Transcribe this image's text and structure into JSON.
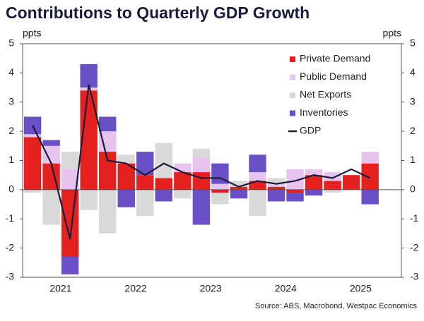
{
  "chart_data": {
    "type": "stacked_bar_line",
    "title": "Contributions to Quarterly GDP Growth",
    "y_label": "ppts",
    "y2_label": "ppts",
    "source": "Source: ABS, Macrobond, Westpac Economics",
    "categories": [
      "2021",
      null,
      null,
      null,
      "2022",
      null,
      null,
      null,
      "2023",
      null,
      null,
      null,
      "2024",
      null,
      null,
      null,
      "2025",
      null,
      null
    ],
    "series": [
      {
        "name": "Private Demand",
        "color": "#e4211f",
        "values": [
          1.8,
          0.9,
          -2.3,
          3.4,
          1.3,
          0.9,
          0.5,
          0.4,
          0.6,
          0.6,
          -0.1,
          0.1,
          0.3,
          0.1,
          -0.1,
          0.5,
          0.3,
          0.5,
          0.9
        ]
      },
      {
        "name": "Public Demand",
        "color": "#e6c3f0",
        "values": [
          0.1,
          0.6,
          0.7,
          0.1,
          0.7,
          0.0,
          0.0,
          0.0,
          0.3,
          0.5,
          0.2,
          0.0,
          0.3,
          0.1,
          0.7,
          0.2,
          0.3,
          0.0,
          0.4
        ]
      },
      {
        "name": "Net Exports",
        "color": "#d9d9d9",
        "values": [
          -0.1,
          -1.2,
          0.6,
          -0.7,
          -1.5,
          0.3,
          -0.9,
          1.2,
          -0.3,
          0.3,
          -0.4,
          0.2,
          -0.9,
          0.2,
          0.0,
          0.0,
          -0.1,
          0.0,
          0.0
        ]
      },
      {
        "name": "Inventories",
        "color": "#6a4fc6",
        "values": [
          0.6,
          0.2,
          -0.6,
          0.8,
          0.5,
          -0.6,
          0.8,
          -0.4,
          0.0,
          -1.2,
          0.7,
          -0.3,
          0.6,
          -0.4,
          -0.3,
          -0.2,
          0.0,
          0.0,
          -0.5
        ]
      },
      {
        "name": "GDP",
        "color": "#1c1c3a",
        "kind": "line",
        "values": [
          2.2,
          0.9,
          -1.7,
          3.6,
          1.0,
          0.9,
          0.5,
          0.9,
          0.6,
          0.4,
          0.4,
          0.1,
          0.3,
          0.2,
          0.3,
          0.5,
          0.4,
          0.7,
          0.4
        ]
      }
    ],
    "ylim": [
      -3,
      5
    ],
    "yticks": [
      -3,
      -2,
      -1,
      0,
      1,
      2,
      3,
      4,
      5
    ],
    "legend": "top-right"
  }
}
